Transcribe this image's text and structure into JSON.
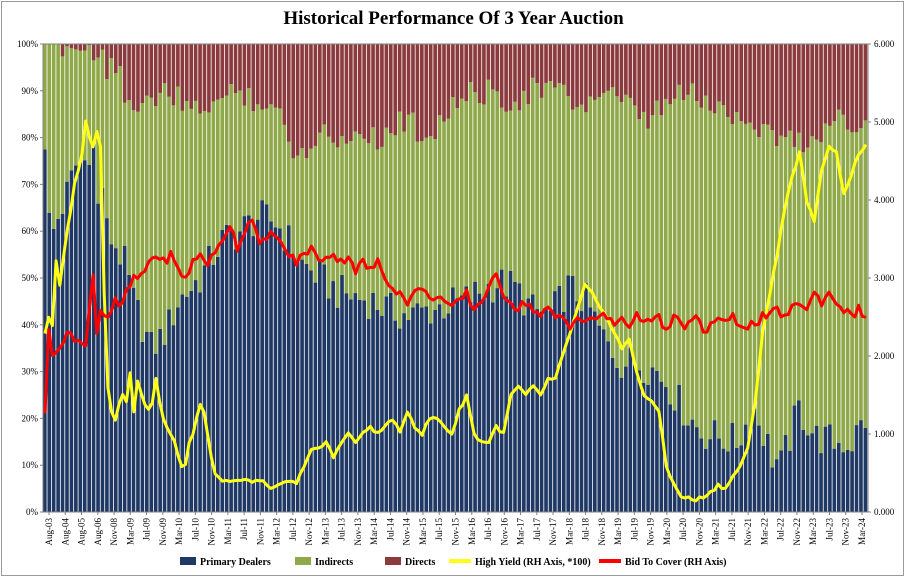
{
  "chart_data": {
    "type": "bar",
    "title": "Historical Performance Of 3 Year Auction",
    "stacked_percent": true,
    "left_axis": {
      "ticks": [
        "0%",
        "10%",
        "20%",
        "30%",
        "40%",
        "50%",
        "60%",
        "70%",
        "80%",
        "90%",
        "100%"
      ],
      "ylim": [
        0,
        100
      ]
    },
    "right_axis": {
      "ticks": [
        "0.000",
        "1.000",
        "2.000",
        "3.000",
        "4.000",
        "5.000",
        "6.000"
      ],
      "ylim": [
        0,
        6
      ]
    },
    "x_tick_labels": [
      "Aug-03",
      "Aug-04",
      "Aug-05",
      "Aug-06",
      "Nov-08",
      "Mar-09",
      "Jul-09",
      "Nov-09",
      "Mar-10",
      "Jul-10",
      "Nov-10",
      "Mar-11",
      "Jul-11",
      "Nov-11",
      "Mar-12",
      "Jul-12",
      "Nov-12",
      "Mar-13",
      "Jul-13",
      "Nov-13",
      "Mar-14",
      "Jul-14",
      "Nov-14",
      "Mar-15",
      "Jul-15",
      "Nov-15",
      "Mar-16",
      "Jul-16",
      "Nov-16",
      "Mar-17",
      "Jul-17",
      "Nov-17",
      "Mar-18",
      "Jul-18",
      "Nov-18",
      "Mar-19",
      "Jul-19",
      "Nov-19",
      "Mar-20",
      "Jul-20",
      "Nov-20",
      "Mar-21",
      "Jul-21",
      "Nov-21",
      "Mar-22",
      "Jul-22",
      "Nov-22",
      "Mar-23",
      "Jul-23",
      "Nov-23",
      "Mar-24"
    ],
    "bar_series_names": [
      "Primary Dealers",
      "Indirects",
      "Directs"
    ],
    "line_series_names": [
      "High Yield (RH Axis, *100)",
      "Bid To Cover (RH Axis)"
    ],
    "colors": {
      "primary_dealers": "#1f3864",
      "indirects": "#8fa94a",
      "directs": "#8b3a3e",
      "high_yield": "#ffff1a",
      "bid_to_cover": "#ff0000"
    },
    "anchors": {
      "primary_dealers": [
        [
          0,
          80
        ],
        [
          1,
          62
        ],
        [
          2,
          60
        ],
        [
          3,
          63
        ],
        [
          5,
          68
        ],
        [
          7,
          74
        ],
        [
          9,
          75
        ],
        [
          10,
          78
        ],
        [
          11,
          78
        ],
        [
          12,
          65
        ],
        [
          13,
          70
        ],
        [
          14,
          60
        ],
        [
          16,
          57
        ],
        [
          18,
          53
        ],
        [
          20,
          45
        ],
        [
          22,
          40
        ],
        [
          24,
          35
        ],
        [
          26,
          37
        ],
        [
          28,
          40
        ],
        [
          30,
          45
        ],
        [
          32,
          47
        ],
        [
          35,
          50
        ],
        [
          40,
          58
        ],
        [
          44,
          60
        ],
        [
          48,
          63
        ],
        [
          52,
          62
        ],
        [
          55,
          58
        ],
        [
          58,
          53
        ],
        [
          62,
          50
        ],
        [
          66,
          47
        ],
        [
          70,
          46
        ],
        [
          74,
          45
        ],
        [
          78,
          43
        ],
        [
          82,
          42
        ],
        [
          86,
          43
        ],
        [
          90,
          44
        ],
        [
          94,
          45
        ],
        [
          98,
          47
        ],
        [
          102,
          49
        ],
        [
          106,
          48
        ],
        [
          110,
          43
        ],
        [
          114,
          42
        ],
        [
          118,
          48
        ],
        [
          122,
          45
        ],
        [
          126,
          37
        ],
        [
          130,
          32
        ],
        [
          134,
          32
        ],
        [
          138,
          30
        ],
        [
          140,
          28
        ],
        [
          144,
          22
        ],
        [
          148,
          17
        ],
        [
          152,
          16
        ],
        [
          156,
          15
        ],
        [
          160,
          22
        ],
        [
          164,
          12
        ],
        [
          166,
          10
        ],
        [
          170,
          22
        ],
        [
          174,
          16
        ],
        [
          178,
          15
        ],
        [
          182,
          15
        ],
        [
          185,
          20
        ]
      ],
      "directs": [
        [
          0,
          0
        ],
        [
          4,
          0
        ],
        [
          8,
          1
        ],
        [
          12,
          1
        ],
        [
          13,
          3
        ],
        [
          14,
          6
        ],
        [
          15,
          2
        ],
        [
          17,
          5
        ],
        [
          18,
          10
        ],
        [
          20,
          14
        ],
        [
          22,
          15
        ],
        [
          24,
          12
        ],
        [
          26,
          10
        ],
        [
          28,
          11
        ],
        [
          30,
          12
        ],
        [
          32,
          15
        ],
        [
          36,
          13
        ],
        [
          40,
          12
        ],
        [
          44,
          10
        ],
        [
          48,
          12
        ],
        [
          52,
          14
        ],
        [
          56,
          22
        ],
        [
          58,
          24
        ],
        [
          60,
          20
        ],
        [
          64,
          18
        ],
        [
          66,
          22
        ],
        [
          70,
          18
        ],
        [
          74,
          19
        ],
        [
          76,
          21
        ],
        [
          80,
          16
        ],
        [
          84,
          18
        ],
        [
          86,
          20
        ],
        [
          90,
          15
        ],
        [
          94,
          12
        ],
        [
          98,
          10
        ],
        [
          102,
          11
        ],
        [
          106,
          12
        ],
        [
          110,
          10
        ],
        [
          114,
          9
        ],
        [
          118,
          12
        ],
        [
          122,
          13
        ],
        [
          126,
          10
        ],
        [
          130,
          13
        ],
        [
          134,
          15
        ],
        [
          136,
          18
        ],
        [
          138,
          14
        ],
        [
          142,
          12
        ],
        [
          146,
          10
        ],
        [
          150,
          14
        ],
        [
          154,
          14
        ],
        [
          158,
          16
        ],
        [
          162,
          18
        ],
        [
          166,
          20
        ],
        [
          170,
          21
        ],
        [
          174,
          20
        ],
        [
          178,
          16
        ],
        [
          182,
          16
        ],
        [
          185,
          17
        ]
      ],
      "high_yield": [
        [
          0,
          2.3
        ],
        [
          1,
          2.5
        ],
        [
          2,
          2.4
        ],
        [
          3,
          3.2
        ],
        [
          4,
          2.9
        ],
        [
          6,
          3.6
        ],
        [
          8,
          4.2
        ],
        [
          10,
          4.6
        ],
        [
          11,
          5.0
        ],
        [
          12,
          4.8
        ],
        [
          13,
          4.7
        ],
        [
          14,
          4.9
        ],
        [
          15,
          4.7
        ],
        [
          16,
          2.8
        ],
        [
          17,
          1.6
        ],
        [
          18,
          1.3
        ],
        [
          19,
          1.2
        ],
        [
          20,
          1.4
        ],
        [
          21,
          1.5
        ],
        [
          22,
          1.4
        ],
        [
          23,
          1.8
        ],
        [
          24,
          1.3
        ],
        [
          25,
          1.7
        ],
        [
          26,
          1.5
        ],
        [
          27,
          1.4
        ],
        [
          28,
          1.3
        ],
        [
          29,
          1.4
        ],
        [
          30,
          1.7
        ],
        [
          31,
          1.4
        ],
        [
          32,
          1.2
        ],
        [
          33,
          1.1
        ],
        [
          34,
          1.0
        ],
        [
          35,
          0.9
        ],
        [
          36,
          0.7
        ],
        [
          37,
          0.6
        ],
        [
          38,
          0.6
        ],
        [
          39,
          0.9
        ],
        [
          40,
          1.0
        ],
        [
          41,
          1.2
        ],
        [
          42,
          1.4
        ],
        [
          43,
          1.3
        ],
        [
          44,
          1.0
        ],
        [
          45,
          0.7
        ],
        [
          46,
          0.5
        ],
        [
          48,
          0.4
        ],
        [
          50,
          0.4
        ],
        [
          54,
          0.4
        ],
        [
          58,
          0.4
        ],
        [
          62,
          0.3
        ],
        [
          66,
          0.4
        ],
        [
          68,
          0.35
        ],
        [
          70,
          0.6
        ],
        [
          72,
          0.8
        ],
        [
          74,
          0.8
        ],
        [
          76,
          0.9
        ],
        [
          78,
          0.7
        ],
        [
          80,
          0.9
        ],
        [
          82,
          1.0
        ],
        [
          84,
          0.9
        ],
        [
          86,
          1.0
        ],
        [
          88,
          1.1
        ],
        [
          90,
          1.0
        ],
        [
          92,
          1.1
        ],
        [
          94,
          1.2
        ],
        [
          96,
          1.0
        ],
        [
          98,
          1.3
        ],
        [
          100,
          1.1
        ],
        [
          102,
          1.0
        ],
        [
          104,
          1.2
        ],
        [
          106,
          1.2
        ],
        [
          108,
          1.1
        ],
        [
          110,
          1.0
        ],
        [
          112,
          1.3
        ],
        [
          114,
          1.5
        ],
        [
          116,
          1.0
        ],
        [
          118,
          0.9
        ],
        [
          120,
          0.9
        ],
        [
          122,
          1.1
        ],
        [
          124,
          1.0
        ],
        [
          126,
          1.5
        ],
        [
          128,
          1.6
        ],
        [
          130,
          1.5
        ],
        [
          132,
          1.6
        ],
        [
          134,
          1.5
        ],
        [
          136,
          1.7
        ],
        [
          138,
          1.7
        ],
        [
          140,
          2.0
        ],
        [
          142,
          2.3
        ],
        [
          144,
          2.6
        ],
        [
          146,
          2.9
        ],
        [
          148,
          2.8
        ],
        [
          150,
          2.6
        ],
        [
          152,
          2.5
        ],
        [
          154,
          2.3
        ],
        [
          156,
          2.1
        ],
        [
          158,
          2.2
        ],
        [
          160,
          1.8
        ],
        [
          162,
          1.5
        ],
        [
          164,
          1.4
        ],
        [
          166,
          1.3
        ],
        [
          168,
          0.6
        ],
        [
          170,
          0.35
        ],
        [
          172,
          0.2
        ],
        [
          176,
          0.15
        ],
        [
          178,
          0.2
        ],
        [
          180,
          0.25
        ],
        [
          182,
          0.35
        ],
        [
          184,
          0.3
        ],
        [
          186,
          0.45
        ],
        [
          188,
          0.6
        ],
        [
          190,
          0.8
        ],
        [
          192,
          1.4
        ],
        [
          194,
          2.3
        ],
        [
          196,
          2.8
        ],
        [
          198,
          3.3
        ],
        [
          200,
          3.9
        ],
        [
          202,
          4.3
        ],
        [
          204,
          4.6
        ],
        [
          206,
          4.0
        ],
        [
          208,
          3.7
        ],
        [
          210,
          4.4
        ],
        [
          212,
          4.7
        ],
        [
          214,
          4.6
        ],
        [
          216,
          4.1
        ],
        [
          218,
          4.3
        ],
        [
          220,
          4.6
        ],
        [
          222,
          4.7
        ]
      ],
      "bid_to_cover": [
        [
          0,
          1.3
        ],
        [
          1,
          2.3
        ],
        [
          2,
          2.0
        ],
        [
          3,
          2.1
        ],
        [
          5,
          2.2
        ],
        [
          7,
          2.3
        ],
        [
          9,
          2.2
        ],
        [
          11,
          2.1
        ],
        [
          12,
          2.6
        ],
        [
          13,
          3.1
        ],
        [
          14,
          2.3
        ],
        [
          15,
          2.6
        ],
        [
          17,
          2.5
        ],
        [
          19,
          2.7
        ],
        [
          20,
          2.6
        ],
        [
          22,
          2.8
        ],
        [
          24,
          3.0
        ],
        [
          26,
          3.0
        ],
        [
          28,
          3.2
        ],
        [
          30,
          3.3
        ],
        [
          32,
          3.2
        ],
        [
          34,
          3.3
        ],
        [
          36,
          3.1
        ],
        [
          38,
          3.0
        ],
        [
          40,
          3.2
        ],
        [
          42,
          3.3
        ],
        [
          44,
          3.2
        ],
        [
          46,
          3.3
        ],
        [
          48,
          3.5
        ],
        [
          50,
          3.7
        ],
        [
          52,
          3.4
        ],
        [
          54,
          3.6
        ],
        [
          56,
          3.8
        ],
        [
          58,
          3.4
        ],
        [
          60,
          3.5
        ],
        [
          62,
          3.6
        ],
        [
          64,
          3.4
        ],
        [
          66,
          3.3
        ],
        [
          68,
          3.2
        ],
        [
          70,
          3.3
        ],
        [
          72,
          3.4
        ],
        [
          74,
          3.2
        ],
        [
          76,
          3.3
        ],
        [
          78,
          3.3
        ],
        [
          80,
          3.2
        ],
        [
          82,
          3.3
        ],
        [
          84,
          3.1
        ],
        [
          86,
          3.2
        ],
        [
          88,
          3.1
        ],
        [
          90,
          3.2
        ],
        [
          92,
          3.0
        ],
        [
          94,
          2.9
        ],
        [
          96,
          2.8
        ],
        [
          98,
          2.7
        ],
        [
          100,
          2.8
        ],
        [
          102,
          2.9
        ],
        [
          104,
          2.7
        ],
        [
          106,
          2.8
        ],
        [
          108,
          2.7
        ],
        [
          110,
          2.6
        ],
        [
          112,
          2.7
        ],
        [
          114,
          2.8
        ],
        [
          116,
          2.6
        ],
        [
          118,
          2.7
        ],
        [
          120,
          2.9
        ],
        [
          122,
          3.0
        ],
        [
          124,
          2.8
        ],
        [
          126,
          2.7
        ],
        [
          128,
          2.6
        ],
        [
          130,
          2.7
        ],
        [
          132,
          2.6
        ],
        [
          134,
          2.5
        ],
        [
          136,
          2.6
        ],
        [
          138,
          2.5
        ],
        [
          140,
          2.5
        ],
        [
          142,
          2.4
        ],
        [
          144,
          2.5
        ],
        [
          146,
          2.4
        ],
        [
          148,
          2.5
        ],
        [
          150,
          2.5
        ],
        [
          152,
          2.5
        ],
        [
          154,
          2.4
        ],
        [
          156,
          2.5
        ],
        [
          158,
          2.4
        ],
        [
          160,
          2.5
        ],
        [
          162,
          2.5
        ],
        [
          164,
          2.4
        ],
        [
          166,
          2.5
        ],
        [
          168,
          2.3
        ],
        [
          170,
          2.5
        ],
        [
          172,
          2.4
        ],
        [
          174,
          2.4
        ],
        [
          176,
          2.5
        ],
        [
          178,
          2.3
        ],
        [
          180,
          2.4
        ],
        [
          182,
          2.5
        ],
        [
          184,
          2.4
        ],
        [
          186,
          2.5
        ],
        [
          188,
          2.4
        ],
        [
          190,
          2.4
        ],
        [
          192,
          2.4
        ],
        [
          194,
          2.5
        ],
        [
          196,
          2.5
        ],
        [
          198,
          2.6
        ],
        [
          200,
          2.5
        ],
        [
          202,
          2.6
        ],
        [
          204,
          2.7
        ],
        [
          206,
          2.6
        ],
        [
          208,
          2.8
        ],
        [
          210,
          2.7
        ],
        [
          212,
          2.8
        ],
        [
          214,
          2.7
        ],
        [
          216,
          2.6
        ],
        [
          218,
          2.5
        ],
        [
          220,
          2.6
        ],
        [
          222,
          2.5
        ]
      ]
    },
    "n_bars": 186,
    "n_line_points": 223
  }
}
